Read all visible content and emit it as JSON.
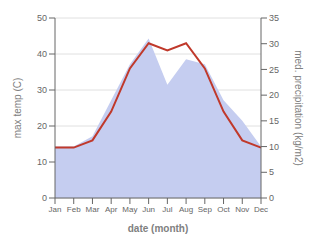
{
  "chart_data": {
    "type": "line",
    "categories": [
      "Jan",
      "Feb",
      "Mar",
      "Apr",
      "May",
      "Jun",
      "Jul",
      "Aug",
      "Sep",
      "Oct",
      "Nov",
      "Dec"
    ],
    "series": [
      {
        "type": "area",
        "color": "#c5cdf0",
        "axis": "y2",
        "values": [
          10,
          10,
          12,
          19,
          26,
          31,
          22,
          27,
          26,
          19,
          15,
          10
        ]
      },
      {
        "type": "line",
        "color": "#c0392b",
        "values": [
          14,
          14,
          16,
          24,
          36,
          43,
          41,
          43,
          36,
          24,
          16,
          14
        ]
      }
    ],
    "xlabel": "date (month)",
    "ylabel": "max temp (C)",
    "y2label": "med. precipitation (kg/m2)",
    "ylim": [
      0,
      50
    ],
    "yticks": [
      0,
      10,
      20,
      30,
      40,
      50
    ],
    "y2lim": [
      0,
      35
    ],
    "y2ticks": [
      0,
      5,
      10,
      15,
      20,
      25,
      30,
      35
    ],
    "grid": true
  }
}
